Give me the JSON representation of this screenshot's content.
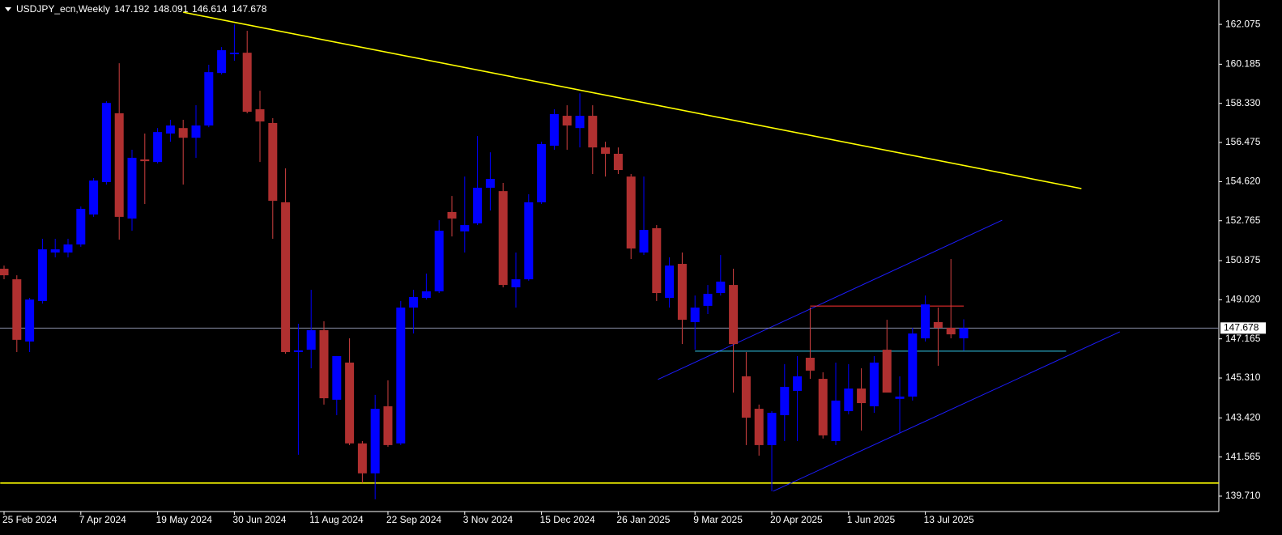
{
  "chart_data": {
    "type": "candlestick",
    "title": "USDJPY_ecn,Weekly",
    "categories": [
      "25 Feb 2024",
      null,
      null,
      null,
      null,
      null,
      "7 Apr 2024",
      null,
      null,
      null,
      null,
      null,
      "19 May 2024",
      null,
      null,
      null,
      null,
      null,
      "30 Jun 2024",
      null,
      null,
      null,
      null,
      null,
      "11 Aug 2024",
      null,
      null,
      null,
      null,
      null,
      "22 Sep 2024",
      null,
      null,
      null,
      null,
      null,
      "3 Nov 2024",
      null,
      null,
      null,
      null,
      null,
      "15 Dec 2024",
      null,
      null,
      null,
      null,
      null,
      "26 Jan 2025",
      null,
      null,
      null,
      null,
      null,
      "9 Mar 2025",
      null,
      null,
      null,
      null,
      null,
      "20 Apr 2025",
      null,
      null,
      null,
      null,
      null,
      "1 Jun 2025",
      null,
      null,
      null,
      null,
      null,
      "13 Jul 2025",
      null,
      null,
      null
    ],
    "open": [
      150.49,
      149.99,
      147.04,
      148.96,
      151.26,
      151.26,
      151.64,
      153.06,
      154.6,
      157.86,
      152.87,
      155.67,
      155.55,
      156.9,
      157.16,
      156.7,
      157.28,
      159.77,
      160.66,
      160.73,
      158.05,
      157.4,
      153.64,
      146.54,
      146.65,
      147.58,
      144.28,
      146.04,
      142.21,
      140.79,
      143.97,
      142.21,
      148.65,
      149.11,
      149.42,
      153.18,
      152.26,
      152.64,
      154.33,
      154.17,
      149.61,
      149.99,
      153.64,
      156.32,
      157.74,
      157.16,
      157.74,
      156.24,
      155.94,
      154.86,
      151.26,
      152.41,
      149.11,
      150.72,
      147.96,
      148.73,
      149.34,
      149.72,
      145.39,
      143.85,
      142.13,
      143.55,
      144.7,
      146.27,
      145.27,
      142.32,
      143.74,
      144.81,
      143.97,
      146.65,
      144.32,
      144.43,
      147.19,
      147.96,
      147.69,
      147.192
    ],
    "high": [
      150.64,
      150.18,
      149.11,
      151.91,
      151.91,
      151.91,
      153.44,
      154.79,
      158.43,
      160.23,
      156.13,
      156.9,
      157.16,
      157.55,
      157.55,
      158.24,
      160.16,
      161.0,
      162.07,
      161.77,
      158.93,
      157.63,
      155.25,
      147.88,
      149.49,
      148.0,
      146.35,
      147.19,
      142.32,
      144.51,
      145.2,
      148.96,
      149.49,
      150.26,
      152.79,
      153.94,
      154.86,
      156.78,
      156.01,
      154.56,
      151.26,
      154.02,
      156.51,
      158.05,
      158.24,
      158.81,
      158.24,
      156.51,
      156.24,
      154.98,
      154.86,
      152.56,
      151.03,
      151.26,
      149.22,
      149.72,
      151.14,
      150.49,
      146.54,
      144.05,
      143.74,
      145.97,
      146.35,
      148.65,
      145.58,
      146.04,
      145.97,
      145.77,
      146.35,
      148.07,
      145.39,
      147.69,
      149.22,
      148.65,
      150.95,
      148.091
    ],
    "low": [
      149.99,
      146.54,
      146.54,
      148.84,
      151.03,
      151.03,
      151.53,
      152.95,
      154.48,
      151.87,
      152.29,
      153.56,
      155.48,
      156.51,
      154.48,
      155.75,
      157.2,
      159.7,
      160.35,
      157.86,
      155.55,
      151.91,
      146.46,
      141.67,
      145.77,
      144.05,
      143.55,
      142.13,
      140.33,
      139.56,
      142.05,
      142.13,
      147.42,
      149.03,
      149.34,
      152.02,
      151.26,
      152.56,
      153.25,
      149.61,
      148.65,
      149.92,
      153.56,
      156.13,
      156.13,
      156.24,
      154.98,
      154.86,
      154.98,
      150.95,
      151.14,
      148.96,
      148.65,
      146.92,
      146.65,
      148.34,
      149.22,
      144.62,
      142.13,
      141.63,
      139.94,
      142.32,
      142.32,
      145.27,
      142.44,
      142.13,
      143.59,
      142.82,
      143.66,
      144.62,
      142.7,
      144.24,
      147.04,
      145.89,
      147.19,
      146.614
    ],
    "close": [
      150.18,
      147.12,
      149.03,
      151.41,
      151.41,
      151.64,
      153.33,
      154.67,
      158.35,
      152.95,
      155.75,
      155.59,
      156.97,
      157.28,
      156.7,
      157.28,
      159.81,
      160.85,
      160.73,
      157.93,
      157.47,
      153.71,
      146.54,
      146.62,
      147.58,
      144.35,
      146.35,
      142.21,
      140.79,
      143.85,
      142.13,
      148.65,
      149.15,
      149.42,
      152.29,
      152.87,
      152.56,
      154.33,
      154.75,
      149.72,
      149.99,
      153.64,
      156.4,
      157.82,
      157.28,
      157.74,
      156.24,
      155.94,
      155.17,
      151.45,
      152.33,
      149.34,
      150.64,
      148.07,
      148.65,
      149.3,
      149.88,
      146.92,
      143.43,
      142.13,
      143.66,
      144.89,
      145.39,
      145.66,
      142.59,
      144.24,
      144.81,
      144.12,
      146.04,
      144.62,
      144.43,
      147.42,
      148.8,
      147.69,
      147.38,
      147.678
    ],
    "up_color": "#0000ff",
    "down_color": "#b03030",
    "ylim": [
      138.98,
      163.23
    ],
    "yticks": [
      162.075,
      160.185,
      {
        "value": 158.33,
        "label": "158.330"
      },
      156.475,
      {
        "value": 154.62,
        "label": "154.620"
      },
      152.765,
      150.875,
      {
        "value": 149.02,
        "label": "149.020"
      },
      147.165,
      {
        "value": 145.31,
        "label": "145.310"
      },
      {
        "value": 143.42,
        "label": "143.420"
      },
      141.565,
      {
        "value": 139.71,
        "label": "139.710"
      }
    ],
    "grid": false,
    "trendlines": [
      {
        "color": "#ffff00",
        "x": [
          14,
          84.2
        ],
        "y": [
          162.65,
          154.29
        ]
      },
      {
        "color": "#ffff00",
        "x": [
          -0.3,
          95
        ],
        "y": [
          140.33,
          140.33
        ]
      },
      {
        "color": "#1c1cff",
        "x": [
          51.1,
          78.0
        ],
        "y": [
          145.24,
          152.79
        ]
      },
      {
        "color": "#1c1cff",
        "x": [
          60.1,
          87.2
        ],
        "y": [
          139.94,
          147.5
        ]
      },
      {
        "color": "#ff3030",
        "x": [
          63,
          75
        ],
        "y": [
          148.72,
          148.72
        ]
      },
      {
        "color": "#33ccee",
        "x": [
          54,
          83
        ],
        "y": [
          146.58,
          146.58
        ]
      }
    ]
  }
}
